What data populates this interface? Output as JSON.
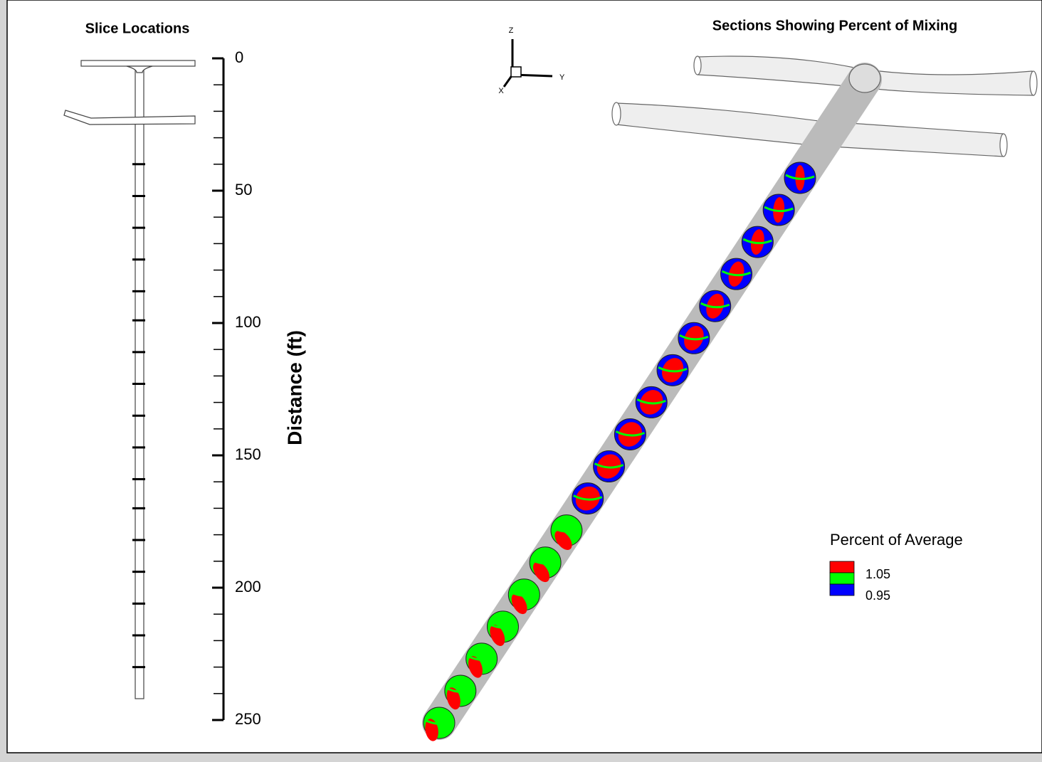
{
  "slice_panel": {
    "title": "Slice Locations",
    "axis_label": "Distance (ft)",
    "ylim": [
      0,
      250
    ],
    "ticks": [
      0,
      50,
      100,
      150,
      200,
      250
    ],
    "minor_ticks": [
      0,
      10,
      20,
      30,
      40,
      50,
      60,
      70,
      80,
      90,
      100,
      110,
      120,
      130,
      140,
      150,
      160,
      170,
      180,
      190,
      200,
      210,
      220,
      230,
      240,
      250
    ],
    "slice_locations": [
      40,
      52,
      64,
      76,
      88,
      99,
      111,
      123,
      135,
      147,
      159,
      170,
      182,
      194,
      206,
      218,
      230
    ]
  },
  "mixing_panel": {
    "title": "Sections Showing Percent of Mixing",
    "axes": {
      "z": "Z",
      "y": "Y",
      "x": "X"
    },
    "legend": {
      "title": "Percent of Average",
      "levels": [
        {
          "label": "1.05",
          "color": "#ff0000"
        },
        {
          "label": "0.95",
          "color": "#00ff00"
        },
        {
          "color": "#0000ff"
        }
      ]
    }
  }
}
